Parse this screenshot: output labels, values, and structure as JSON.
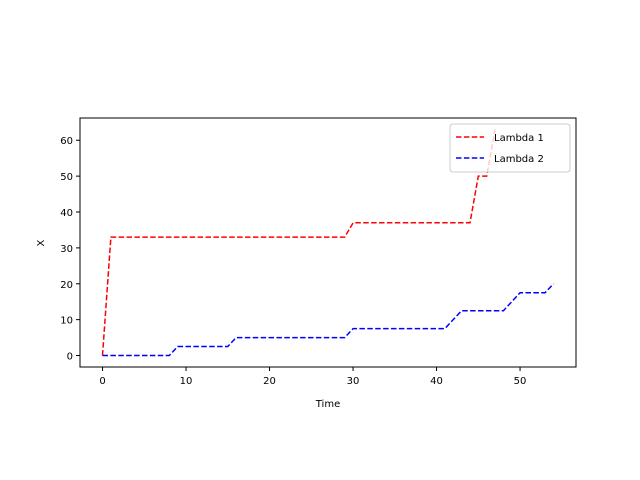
{
  "chart_data": {
    "type": "line",
    "title": "",
    "xlabel": "Time",
    "ylabel": "X",
    "xlim": [
      -2.7,
      56.7
    ],
    "ylim": [
      -3.2,
      66.2
    ],
    "xticks": [
      0,
      10,
      20,
      30,
      40,
      50
    ],
    "yticks": [
      0,
      10,
      20,
      30,
      40,
      50,
      60
    ],
    "grid": false,
    "legend_position": "top-right",
    "series": [
      {
        "name": "Lambda 1",
        "color": "#ff0000",
        "line_style": "dashed",
        "x": [
          0,
          1,
          29,
          30,
          44,
          45,
          46,
          47
        ],
        "y": [
          0,
          33,
          33,
          37,
          37,
          50,
          50,
          63
        ]
      },
      {
        "name": "Lambda 2",
        "color": "#0000ff",
        "line_style": "dashed",
        "x": [
          0,
          8,
          9,
          15,
          16,
          29,
          30,
          41,
          43,
          48,
          50,
          53,
          54
        ],
        "y": [
          0,
          0,
          2.5,
          2.5,
          5,
          5,
          7.5,
          7.5,
          12.5,
          12.5,
          17.5,
          17.5,
          20
        ]
      }
    ]
  }
}
